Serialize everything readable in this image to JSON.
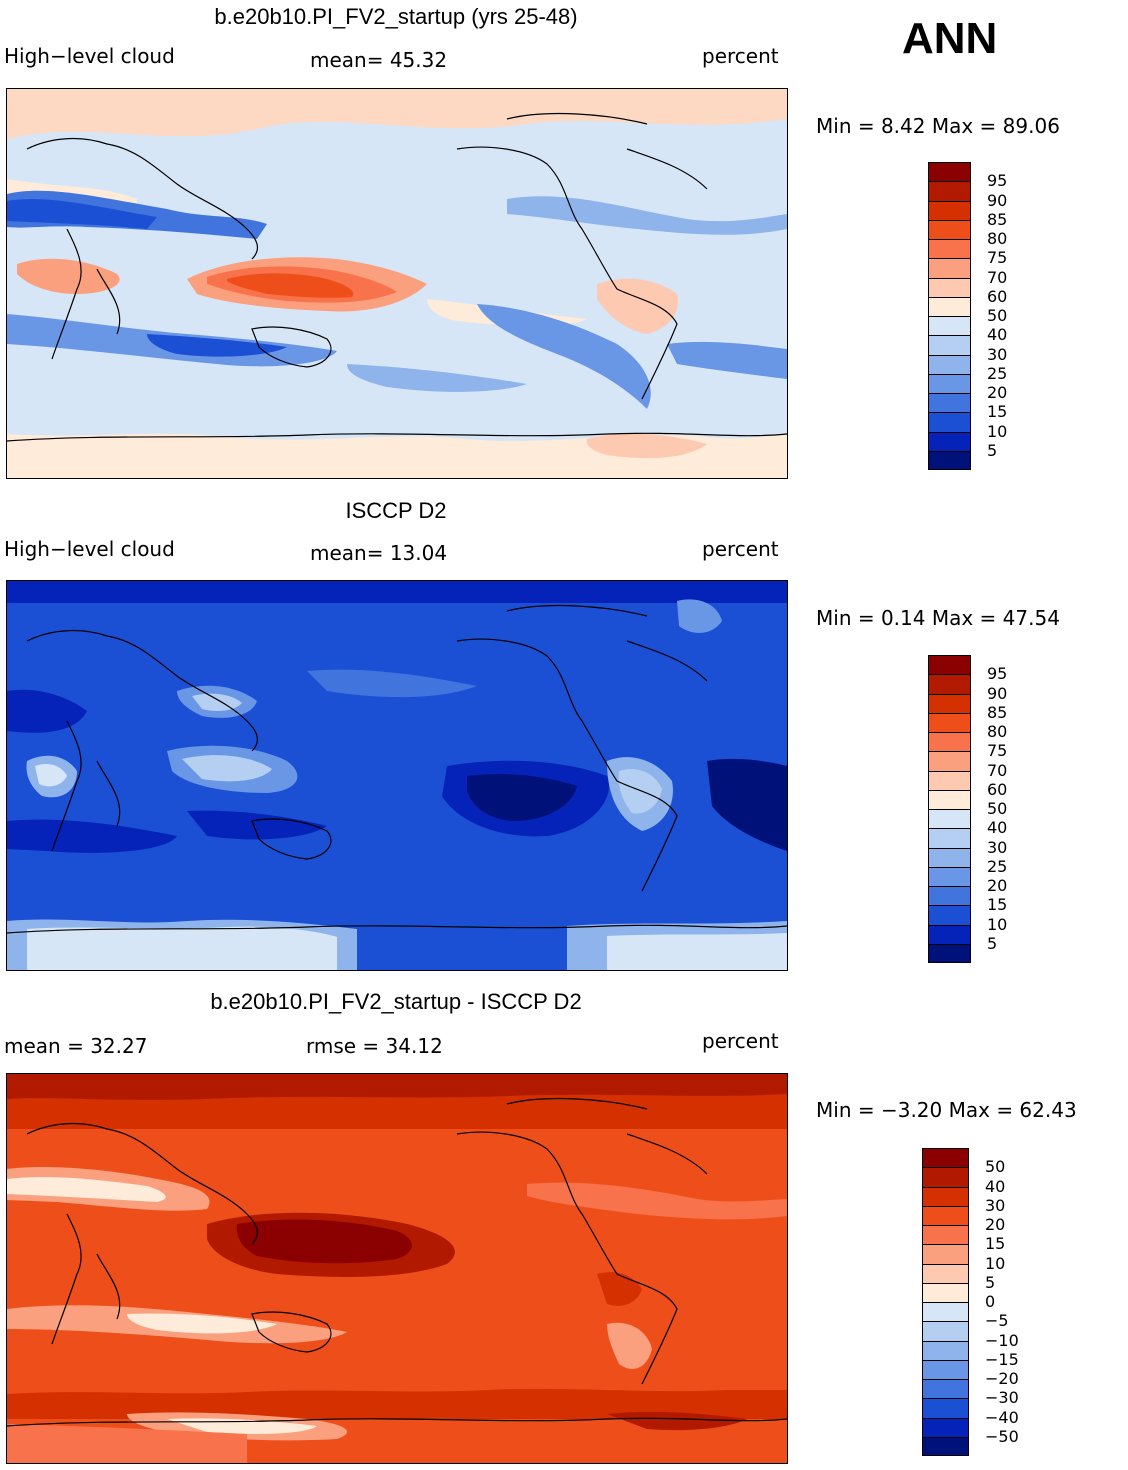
{
  "season": "ANN",
  "panels": [
    {
      "title": "b.e20b10.PI_FV2_startup (yrs 25-48)",
      "left_label": "High−level cloud",
      "center_label": "mean=   45.32",
      "right_label": "percent",
      "stats": "Min =    8.42  Max =   89.06",
      "colorbar_ticks": [
        "95",
        "90",
        "85",
        "80",
        "75",
        "70",
        "60",
        "50",
        "40",
        "30",
        "25",
        "20",
        "15",
        "10",
        "5"
      ],
      "colorbar_colors": [
        "#8b0000",
        "#b21a00",
        "#d53000",
        "#ee4f1a",
        "#f8734b",
        "#fba07f",
        "#fdc9b0",
        "#feebd9",
        "#d6e6f7",
        "#b4cff2",
        "#8fb4ec",
        "#6a96e6",
        "#4274de",
        "#1b4fd4",
        "#0523b8",
        "#00127a"
      ],
      "field_base": "#d5e5f8"
    },
    {
      "title": "ISCCP D2",
      "left_label": "High−level cloud",
      "center_label": "mean=   13.04",
      "right_label": "percent",
      "stats": "Min =    0.14  Max =   47.54",
      "colorbar_ticks": [
        "95",
        "90",
        "85",
        "80",
        "75",
        "70",
        "60",
        "50",
        "40",
        "30",
        "25",
        "20",
        "15",
        "10",
        "5"
      ],
      "colorbar_colors": [
        "#8b0000",
        "#b21a00",
        "#d53000",
        "#ee4f1a",
        "#f8734b",
        "#fba07f",
        "#fdc9b0",
        "#feebd9",
        "#d6e6f7",
        "#b4cff2",
        "#8fb4ec",
        "#6a96e6",
        "#4274de",
        "#1b4fd4",
        "#0523b8",
        "#00127a"
      ],
      "field_base": "#1b4fd4"
    },
    {
      "title": "b.e20b10.PI_FV2_startup - ISCCP D2",
      "left_label": "mean =    32.27",
      "center_label": "rmse =    34.12",
      "right_label": "percent",
      "stats": "Min =   −3.20 Max =    62.43",
      "colorbar_ticks": [
        "50",
        "40",
        "30",
        "20",
        "15",
        "10",
        "5",
        "0",
        "−5",
        "−10",
        "−15",
        "−20",
        "−30",
        "−40",
        "−50"
      ],
      "colorbar_colors": [
        "#8b0000",
        "#b21a00",
        "#d53000",
        "#ee4f1a",
        "#f8734b",
        "#fba07f",
        "#fdc9b0",
        "#feebd9",
        "#d6e6f7",
        "#b4cff2",
        "#8fb4ec",
        "#6a96e6",
        "#4274de",
        "#1b4fd4",
        "#0523b8",
        "#00127a"
      ],
      "field_base": "#ee4f1a"
    }
  ]
}
